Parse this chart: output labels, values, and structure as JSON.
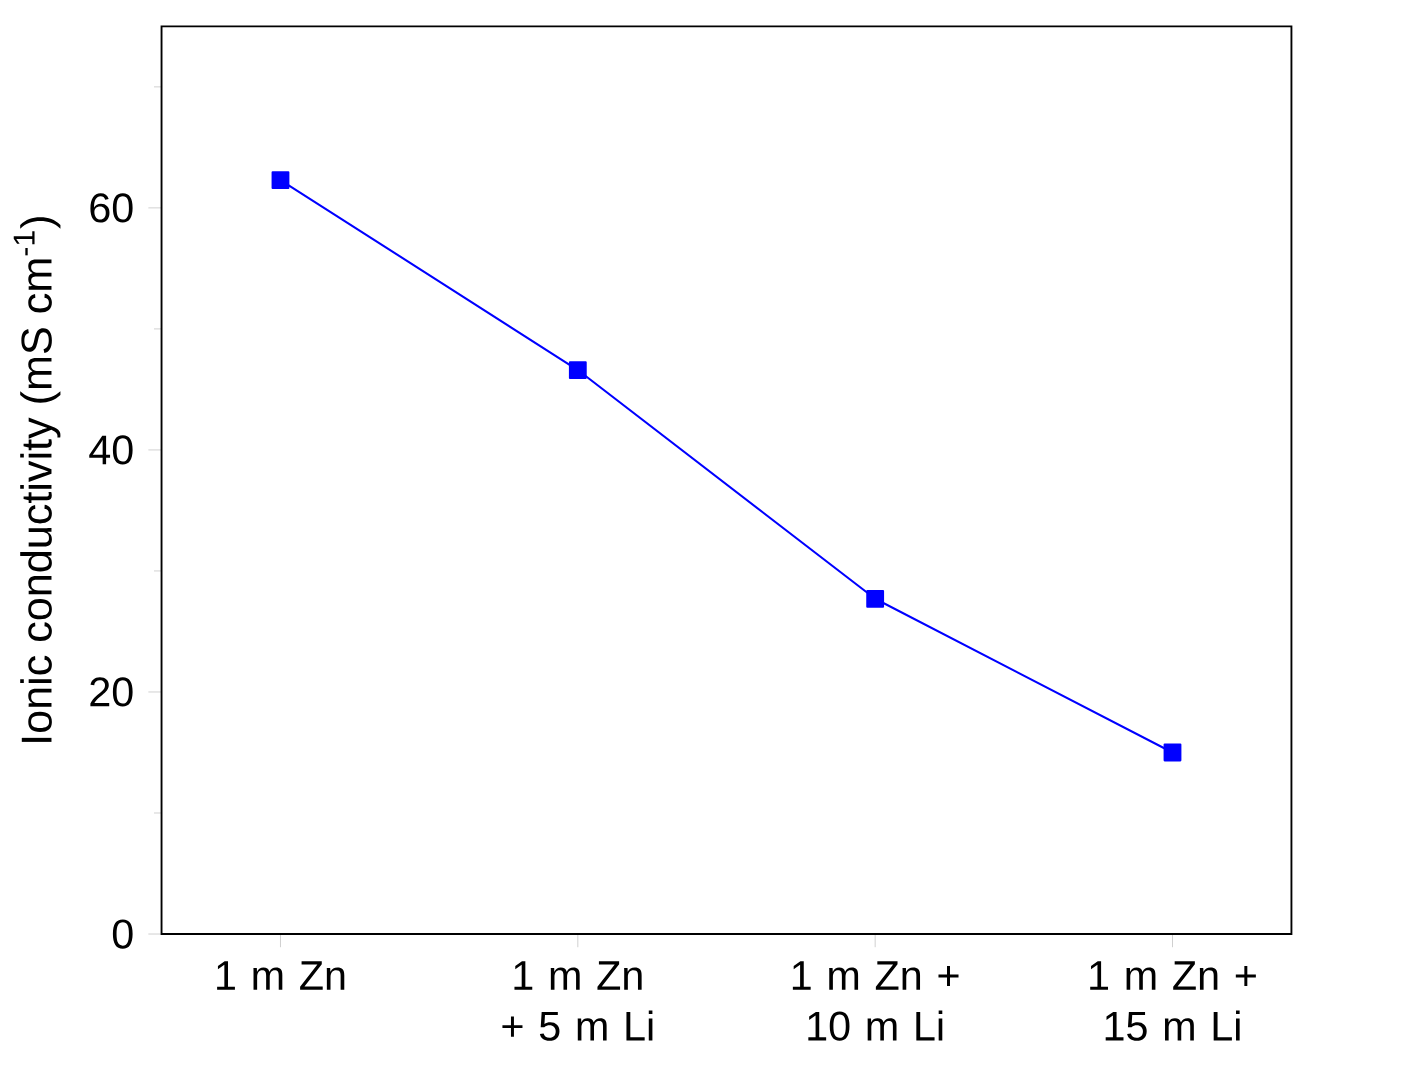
{
  "chart_data": {
    "type": "line",
    "ylabel": "Ionic conductivity (mS cm$^{-1}$)",
    "categories": [
      "1 m Zn",
      "1 m Zn + 5 m Li",
      "1 m Zn + 10 m Li",
      "1 m Zn + 15 m Li"
    ],
    "series": [
      {
        "color": "#0000ff",
        "values": [
          62.3,
          46.6,
          27.7,
          15.0
        ]
      }
    ],
    "ylim": [
      0,
      75
    ],
    "yticks": [
      0,
      {
        "value": 10,
        "label": null
      },
      20,
      {
        "value": 30,
        "label": null
      },
      40,
      {
        "value": 50,
        "label": null
      },
      60,
      {
        "value": 70,
        "label": null
      }
    ],
    "marker": "square",
    "line_style": "solid"
  }
}
